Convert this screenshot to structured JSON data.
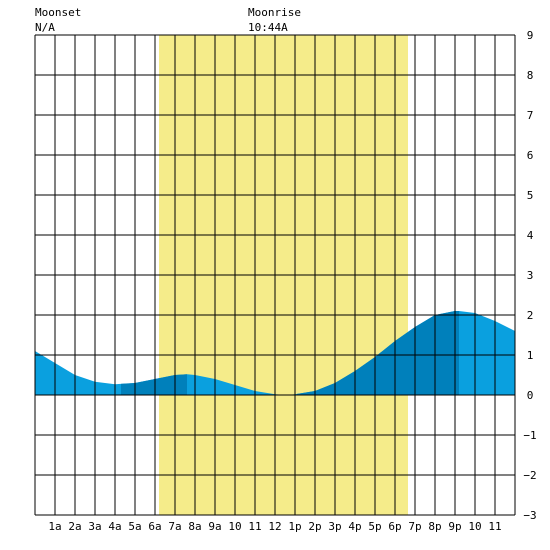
{
  "header": {
    "moonset_label": "Moonset",
    "moonset_value": "N/A",
    "moonrise_label": "Moonrise",
    "moonrise_value": "10:44A"
  },
  "colors": {
    "daylight": "#f5ec8a",
    "tide_light": "#0aa0df",
    "tide_dark": "#0080bb",
    "grid": "#000000",
    "background": "#ffffff"
  },
  "chart_data": {
    "type": "area",
    "xlim": [
      0,
      24
    ],
    "ylim": [
      -3,
      9
    ],
    "x_tick_labels": [
      "1a",
      "2a",
      "3a",
      "4a",
      "5a",
      "6a",
      "7a",
      "8a",
      "9a",
      "10",
      "11",
      "12",
      "1p",
      "2p",
      "3p",
      "4p",
      "5p",
      "6p",
      "7p",
      "8p",
      "9p",
      "10",
      "11"
    ],
    "y_tick_labels": [
      "9",
      "8",
      "7",
      "6",
      "5",
      "4",
      "3",
      "2",
      "1",
      "0",
      "−1",
      "−2",
      "−3"
    ],
    "daylight_hours": [
      6.2,
      18.65
    ],
    "dark_band_hours": [
      [
        4.3,
        7.6
      ],
      [
        13.1,
        21.2
      ]
    ],
    "tide_series": {
      "name": "",
      "hours": [
        0,
        1,
        2,
        3,
        4,
        5,
        6,
        7,
        7.6,
        8,
        9,
        10,
        11,
        12,
        12.6,
        13,
        14,
        15,
        16,
        17,
        18,
        19,
        20,
        21,
        21.2,
        22,
        23,
        24
      ],
      "values": [
        1.1,
        0.8,
        0.5,
        0.33,
        0.27,
        0.3,
        0.4,
        0.5,
        0.52,
        0.5,
        0.4,
        0.25,
        0.1,
        0.02,
        0.0,
        0.02,
        0.1,
        0.3,
        0.6,
        0.95,
        1.35,
        1.7,
        2.0,
        2.1,
        2.1,
        2.05,
        1.85,
        1.6
      ]
    }
  }
}
